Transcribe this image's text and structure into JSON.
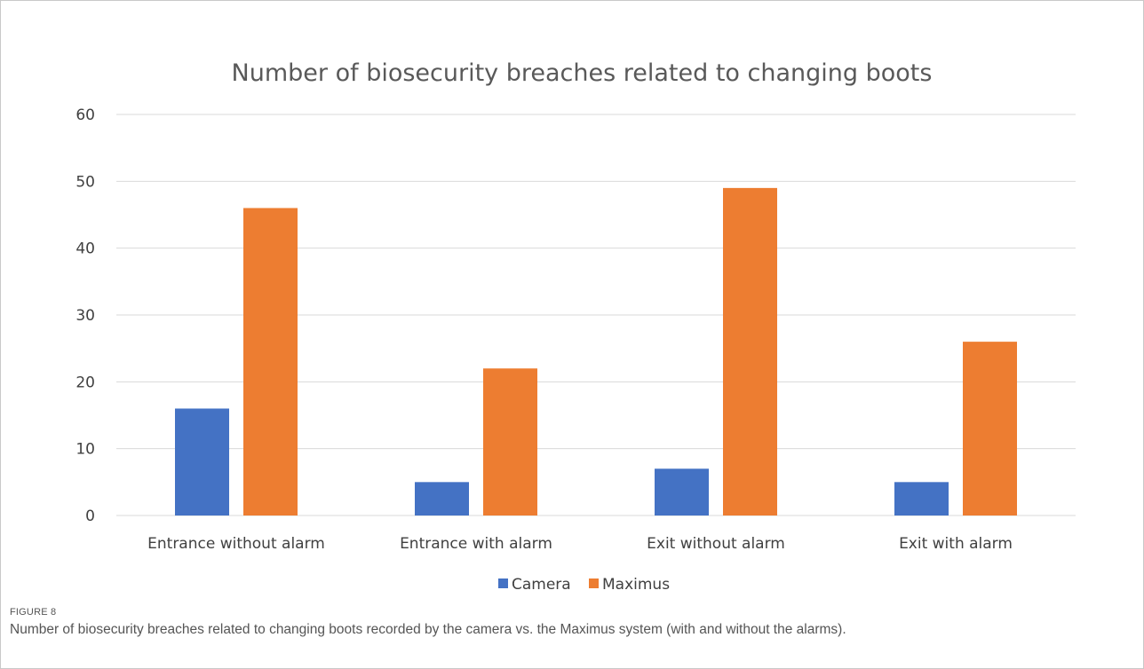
{
  "figure": {
    "label": "FIGURE 8",
    "caption": "Number of biosecurity breaches related to changing boots recorded by the camera vs. the Maximus system (with and without the alarms)."
  },
  "colors": {
    "camera": "#4472c4",
    "maximus": "#ed7d31",
    "grid": "#d9d9d9"
  },
  "chart_data": {
    "type": "bar",
    "title": "Number of biosecurity breaches related to changing boots",
    "xlabel": "",
    "ylabel": "",
    "categories": [
      "Entrance without alarm",
      "Entrance with alarm",
      "Exit without alarm",
      "Exit with alarm"
    ],
    "series": [
      {
        "name": "Camera",
        "values": [
          16,
          5,
          7,
          5
        ]
      },
      {
        "name": "Maximus",
        "values": [
          46,
          22,
          49,
          26
        ]
      }
    ],
    "ylim": [
      0,
      60
    ],
    "yticks": [
      0,
      10,
      20,
      30,
      40,
      50,
      60
    ],
    "grid": true,
    "legend": "bottom"
  }
}
